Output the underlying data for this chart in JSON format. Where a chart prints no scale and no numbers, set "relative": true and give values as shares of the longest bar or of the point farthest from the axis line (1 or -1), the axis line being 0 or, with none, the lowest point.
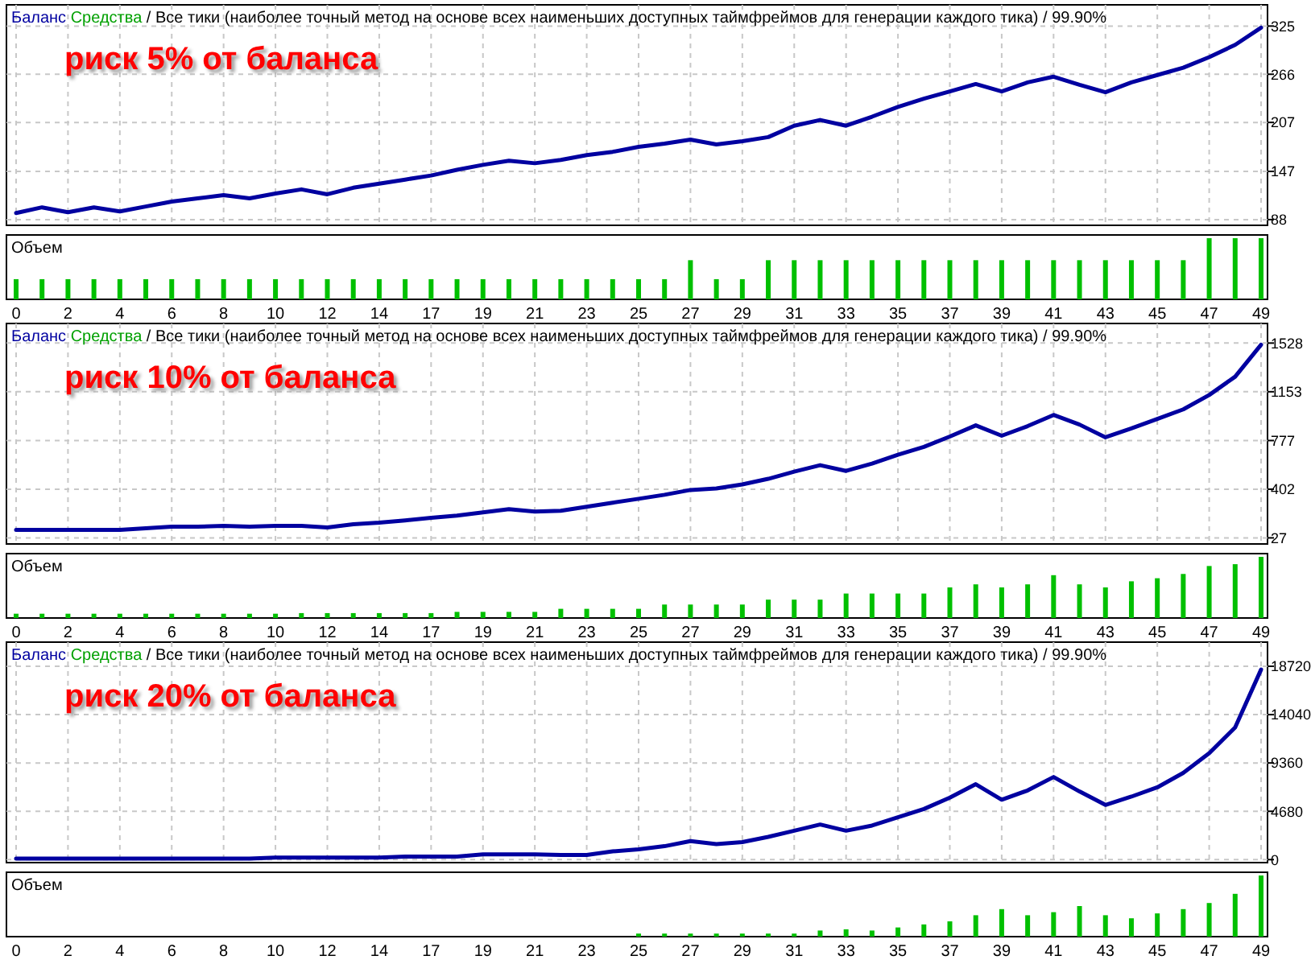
{
  "chart_data": [
    {
      "type": "line",
      "title": "Средства / Все тики (наиболее точный метод на основе всех наименьших доступных таймфреймов для генерации каждого тика) / 99.90%",
      "annotations": [
        "риск 5% от баланса"
      ],
      "categories": [
        "0",
        null,
        "2",
        null,
        "4",
        null,
        "6",
        null,
        "8",
        null,
        "10",
        null,
        "12",
        null,
        "14",
        null,
        "17",
        null,
        "19",
        null,
        "21",
        null,
        "23",
        null,
        "25",
        null,
        "27",
        null,
        "29",
        null,
        "31",
        null,
        "33",
        null,
        "35",
        null,
        "37",
        null,
        "39",
        null,
        "41",
        null,
        "43",
        null,
        "45",
        null,
        "47",
        null,
        "49"
      ],
      "series": [
        {
          "name": "Баланс",
          "color": "#0000a0",
          "values": [
            96,
            103,
            97,
            103,
            98,
            104,
            110,
            114,
            118,
            114,
            120,
            125,
            119,
            127,
            132,
            137,
            142,
            149,
            155,
            160,
            157,
            161,
            167,
            171,
            177,
            181,
            186,
            180,
            184,
            189,
            203,
            210,
            203,
            214,
            226,
            236,
            245,
            254,
            245,
            256,
            263,
            253,
            244,
            256,
            265,
            274,
            287,
            302,
            323
          ]
        }
      ],
      "ylim": [
        81,
        351
      ],
      "yticks": [
        88,
        147,
        207,
        266,
        325
      ],
      "grid": true,
      "tick_labels": "y",
      "line_style": "solid"
    },
    {
      "type": "bar",
      "title": "Объем",
      "relative": true,
      "color": "#00c000",
      "tick_labels": "x",
      "categories": [
        "0",
        null,
        "2",
        null,
        "4",
        null,
        "6",
        null,
        "8",
        null,
        "10",
        null,
        "12",
        null,
        "14",
        null,
        "17",
        null,
        "19",
        null,
        "21",
        null,
        "23",
        null,
        "25",
        null,
        "27",
        null,
        "29",
        null,
        "31",
        null,
        "33",
        null,
        "35",
        null,
        "37",
        null,
        "39",
        null,
        "41",
        null,
        "43",
        null,
        "45",
        null,
        "47",
        null,
        "49"
      ],
      "values": [
        0.33,
        0.33,
        0.33,
        0.33,
        0.33,
        0.33,
        0.33,
        0.33,
        0.33,
        0.33,
        0.33,
        0.33,
        0.33,
        0.33,
        0.33,
        0.33,
        0.33,
        0.33,
        0.33,
        0.33,
        0.33,
        0.33,
        0.33,
        0.33,
        0.33,
        0.33,
        0.64,
        0.33,
        0.33,
        0.64,
        0.64,
        0.64,
        0.64,
        0.64,
        0.64,
        0.64,
        0.64,
        0.64,
        0.64,
        0.64,
        0.64,
        0.64,
        0.64,
        0.64,
        0.64,
        0.64,
        1,
        1,
        1
      ]
    },
    {
      "type": "line",
      "title": "Средства / Все тики (наиболее точный метод на основе всех наименьших доступных таймфреймов для генерации каждого тика) / 99.90%",
      "annotations": [
        "риск 10% от баланса"
      ],
      "categories": [
        "0",
        null,
        "2",
        null,
        "4",
        null,
        "6",
        null,
        "8",
        null,
        "10",
        null,
        "12",
        null,
        "14",
        null,
        "17",
        null,
        "19",
        null,
        "21",
        null,
        "23",
        null,
        "25",
        null,
        "27",
        null,
        "29",
        null,
        "31",
        null,
        "33",
        null,
        "35",
        null,
        "37",
        null,
        "39",
        null,
        "41",
        null,
        "43",
        null,
        "45",
        null,
        "47",
        null,
        "49"
      ],
      "series": [
        {
          "name": "Баланс",
          "color": "#0000a0",
          "values": [
            88,
            88,
            88,
            88,
            88,
            101,
            113,
            113,
            119,
            113,
            119,
            119,
            107,
            132,
            144,
            162,
            181,
            199,
            224,
            248,
            230,
            236,
            267,
            298,
            328,
            359,
            396,
            408,
            439,
            482,
            537,
            587,
            543,
            599,
            667,
            728,
            808,
            894,
            814,
            888,
            974,
            900,
            802,
            870,
            943,
            1017,
            1128,
            1269,
            1515
          ]
        }
      ],
      "ylim": [
        -20,
        1679
      ],
      "yticks": [
        27,
        402,
        777,
        1153,
        1528
      ],
      "grid": true,
      "tick_labels": "y",
      "line_style": "solid"
    },
    {
      "type": "bar",
      "title": "Объем",
      "relative": true,
      "color": "#00c000",
      "tick_labels": "x",
      "categories": [
        "0",
        null,
        "2",
        null,
        "4",
        null,
        "6",
        null,
        "8",
        null,
        "10",
        null,
        "12",
        null,
        "14",
        null,
        "17",
        null,
        "19",
        null,
        "21",
        null,
        "23",
        null,
        "25",
        null,
        "27",
        null,
        "29",
        null,
        "31",
        null,
        "33",
        null,
        "35",
        null,
        "37",
        null,
        "39",
        null,
        "41",
        null,
        "43",
        null,
        "45",
        null,
        "47",
        null,
        "49"
      ],
      "values": [
        0.07,
        0.07,
        0.07,
        0.07,
        0.07,
        0.07,
        0.07,
        0.07,
        0.07,
        0.07,
        0.07,
        0.08,
        0.08,
        0.08,
        0.08,
        0.08,
        0.08,
        0.1,
        0.1,
        0.1,
        0.1,
        0.15,
        0.15,
        0.15,
        0.15,
        0.22,
        0.22,
        0.22,
        0.22,
        0.3,
        0.3,
        0.3,
        0.4,
        0.4,
        0.4,
        0.4,
        0.5,
        0.55,
        0.5,
        0.55,
        0.7,
        0.55,
        0.5,
        0.6,
        0.65,
        0.72,
        0.85,
        0.88,
        1
      ]
    },
    {
      "type": "line",
      "title": "Средства / Все тики (наиболее точный метод на основе всех наименьших доступных таймфреймов для генерации каждого тика) / 99.90%",
      "annotations": [
        "риск 20% от баланса"
      ],
      "categories": [
        "0",
        null,
        "2",
        null,
        "4",
        null,
        "6",
        null,
        "8",
        null,
        "10",
        null,
        "12",
        null,
        "14",
        null,
        "17",
        null,
        "19",
        null,
        "21",
        null,
        "23",
        null,
        "25",
        null,
        "27",
        null,
        "29",
        null,
        "31",
        null,
        "33",
        null,
        "35",
        null,
        "37",
        null,
        "39",
        null,
        "41",
        null,
        "43",
        null,
        "45",
        null,
        "47",
        null,
        "49"
      ],
      "series": [
        {
          "name": "Баланс",
          "color": "#0000a0",
          "values": [
            100,
            100,
            100,
            100,
            100,
            100,
            100,
            100,
            100,
            100,
            200,
            200,
            200,
            200,
            200,
            300,
            300,
            300,
            500,
            500,
            500,
            450,
            450,
            800,
            1000,
            1300,
            1800,
            1500,
            1700,
            2200,
            2800,
            3400,
            2800,
            3300,
            4100,
            4900,
            6000,
            7300,
            5800,
            6700,
            8000,
            6600,
            5300,
            6100,
            7000,
            8400,
            10300,
            12800,
            18400
          ]
        }
      ],
      "ylim": [
        -290,
        21060
      ],
      "yticks": [
        0,
        4680,
        9360,
        14040,
        18720
      ],
      "grid": true,
      "tick_labels": "y",
      "line_style": "solid"
    },
    {
      "type": "bar",
      "title": "Объем",
      "relative": true,
      "color": "#00c000",
      "tick_labels": "x",
      "categories": [
        "0",
        null,
        "2",
        null,
        "4",
        null,
        "6",
        null,
        "8",
        null,
        "10",
        null,
        "12",
        null,
        "14",
        null,
        "17",
        null,
        "19",
        null,
        "21",
        null,
        "23",
        null,
        "25",
        null,
        "27",
        null,
        "29",
        null,
        "31",
        null,
        "33",
        null,
        "35",
        null,
        "37",
        null,
        "39",
        null,
        "41",
        null,
        "43",
        null,
        "45",
        null,
        "47",
        null,
        "49"
      ],
      "values": [
        null,
        null,
        null,
        null,
        null,
        null,
        null,
        null,
        null,
        null,
        null,
        null,
        null,
        null,
        null,
        null,
        null,
        null,
        null,
        null,
        null,
        null,
        null,
        null,
        0.05,
        0.05,
        0.05,
        0.05,
        0.05,
        0.05,
        0.05,
        0.1,
        0.12,
        0.1,
        0.15,
        0.2,
        0.25,
        0.35,
        0.45,
        0.35,
        0.4,
        0.5,
        0.35,
        0.3,
        0.38,
        0.45,
        0.55,
        0.7,
        1
      ]
    }
  ]
}
